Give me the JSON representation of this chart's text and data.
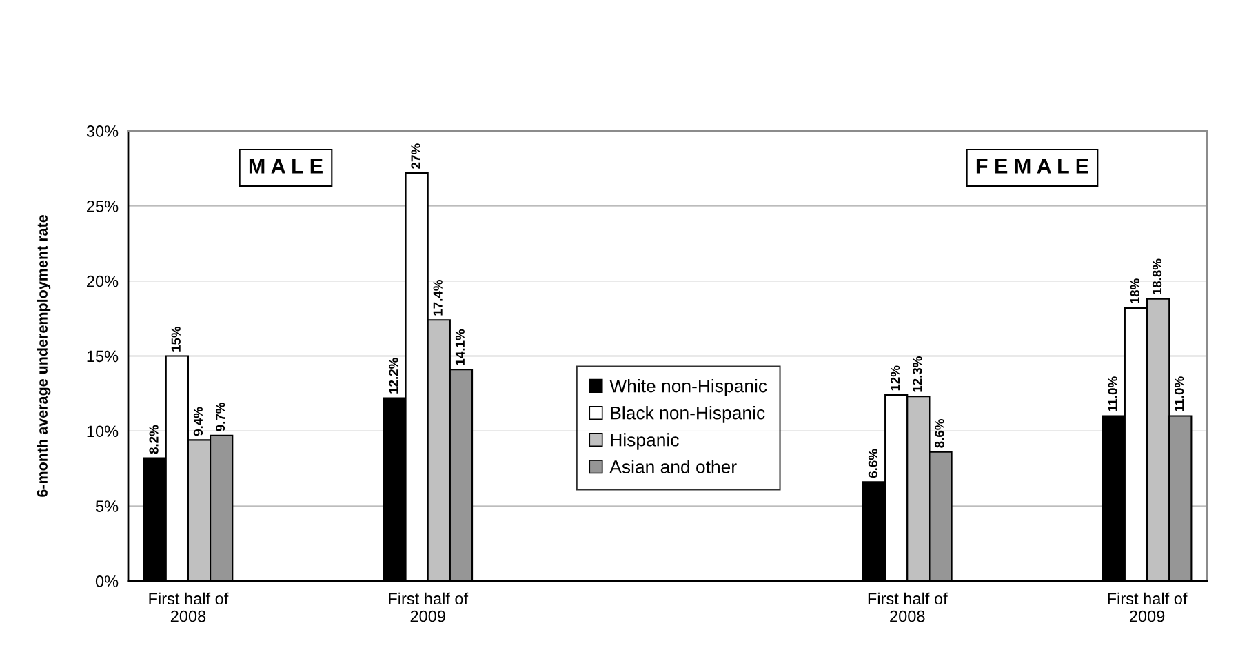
{
  "chart_data": {
    "type": "bar",
    "categories": [
      "First half of\n2008",
      null,
      "First half of\n2009",
      null,
      null,
      null,
      "First half of\n2008",
      null,
      "First half of\n2009"
    ],
    "series": [
      {
        "name": "White non-Hispanic",
        "color": "#000000",
        "values": [
          8.2,
          null,
          12.2,
          null,
          null,
          null,
          6.6,
          null,
          11.0
        ],
        "value_labels": [
          "8.2%",
          null,
          "12.2%",
          null,
          null,
          null,
          "6.6%",
          null,
          "11.0%"
        ]
      },
      {
        "name": "Black non-Hispanic",
        "color": "#ffffff",
        "values": [
          15.0,
          null,
          27.2,
          null,
          null,
          null,
          12.4,
          null,
          18.2
        ],
        "value_labels": [
          "15%",
          null,
          "27%",
          null,
          null,
          null,
          "12%",
          null,
          "18%"
        ]
      },
      {
        "name": "Hispanic",
        "color": "#c0c0c0",
        "values": [
          9.4,
          null,
          17.4,
          null,
          null,
          null,
          12.3,
          null,
          18.8
        ],
        "value_labels": [
          "9.4%",
          null,
          "17.4%",
          null,
          null,
          null,
          "12.3%",
          null,
          "18.8%"
        ]
      },
      {
        "name": "Asian and other",
        "color": "#969696",
        "values": [
          9.7,
          null,
          14.1,
          null,
          null,
          null,
          8.6,
          null,
          11.0
        ],
        "value_labels": [
          "9.7%",
          null,
          "14.1%",
          null,
          null,
          null,
          "8.6%",
          null,
          "11.0%"
        ]
      }
    ],
    "ylabel": "6-month average underemployment rate",
    "ylim": [
      0,
      30
    ],
    "yticks": [
      {
        "value": 0,
        "label": "0%"
      },
      {
        "value": 5,
        "label": "5%"
      },
      {
        "value": 10,
        "label": "10%"
      },
      {
        "value": 15,
        "label": "15%"
      },
      {
        "value": 20,
        "label": "20%"
      },
      {
        "value": 25,
        "label": "25%"
      },
      {
        "value": 30,
        "label": "30%"
      }
    ],
    "annotations": [
      "M A L E",
      "F E M A L E"
    ],
    "grid": "y",
    "legend": "center"
  }
}
